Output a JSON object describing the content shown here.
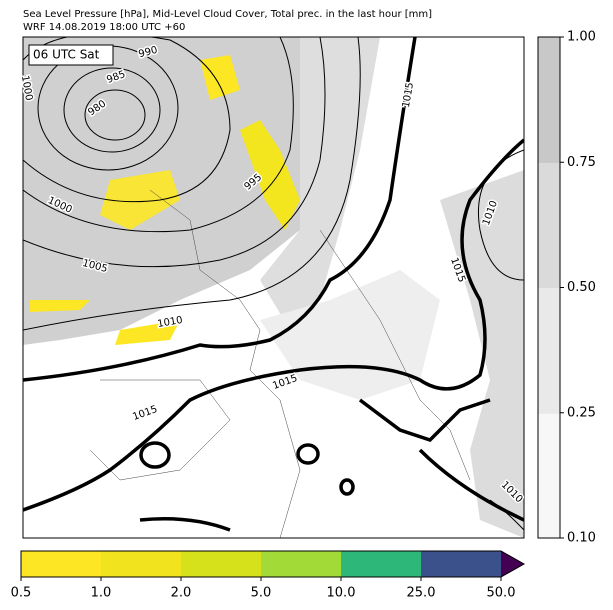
{
  "header": {
    "line1": "Sea Level Pressure [hPa], Mid-Level Cloud Cover, Total prec. in the last hour [mm]",
    "line2": "WRF 14.08.2019 18:00 UTC +60"
  },
  "map": {
    "time_label": "06 UTC Sat",
    "contour_labels": [
      "990",
      "985",
      "980",
      "1000",
      "1000",
      "995",
      "1005",
      "1010",
      "1015",
      "1015",
      "1015",
      "1015",
      "1010",
      "1010"
    ]
  },
  "cloud_colorbar": {
    "ticks": [
      "0.10",
      "0.25",
      "0.50",
      "0.75",
      "1.00"
    ]
  },
  "precip_colorbar": {
    "ticks": [
      "0.5",
      "1.0",
      "2.0",
      "5.0",
      "10.0",
      "25.0",
      "50.0"
    ]
  }
}
